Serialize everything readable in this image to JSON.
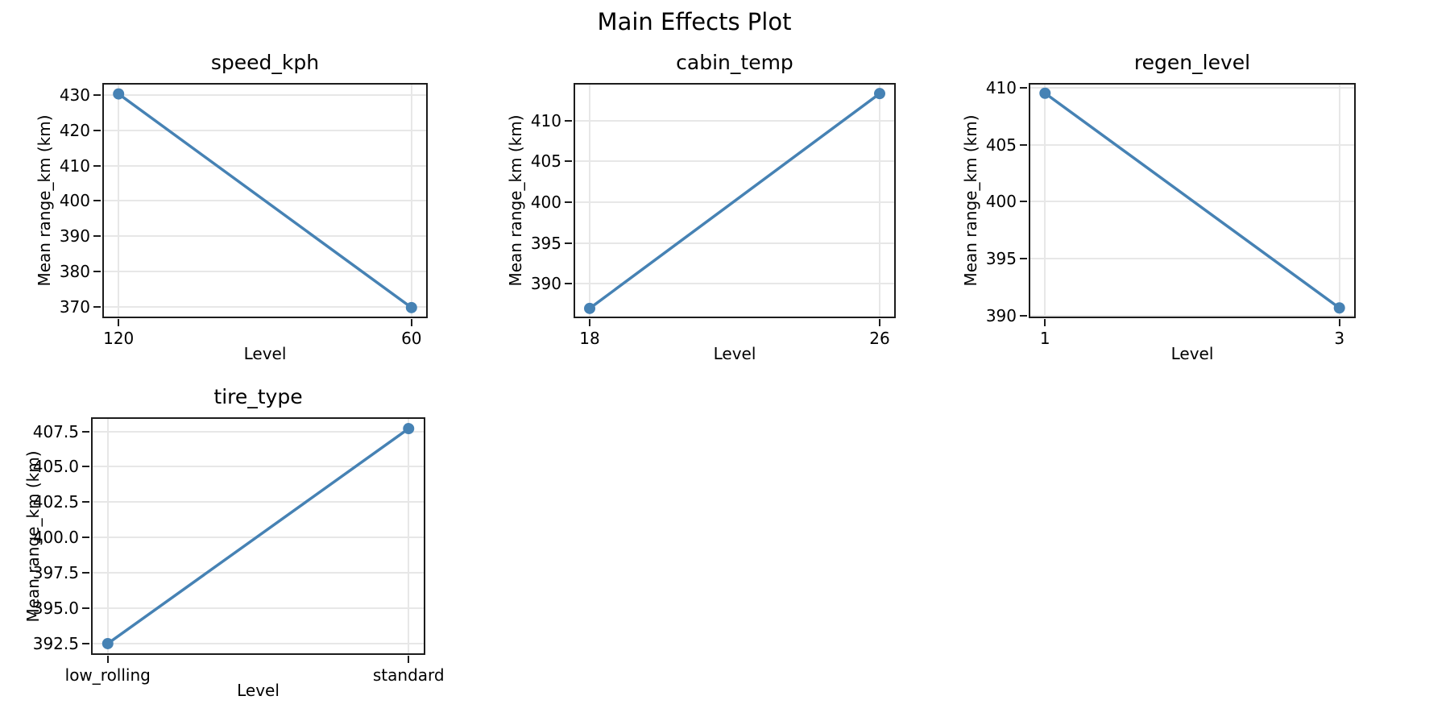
{
  "figure": {
    "title": "Main Effects Plot"
  },
  "chart_data": [
    {
      "type": "line",
      "title": "speed_kph",
      "xlabel": "Level",
      "ylabel": "Mean range_km (km)",
      "categories": [
        "120",
        "60"
      ],
      "values": [
        430.3,
        369.8
      ],
      "ytick_labels": [
        "370",
        "380",
        "390",
        "400",
        "410",
        "420",
        "430"
      ],
      "ylim": [
        366.8,
        433.4
      ],
      "grid": true,
      "legend": false,
      "marker": "circle",
      "line_color": "#4682B4"
    },
    {
      "type": "line",
      "title": "cabin_temp",
      "xlabel": "Level",
      "ylabel": "Mean range_km (km)",
      "categories": [
        "18",
        "26"
      ],
      "values": [
        387.0,
        413.3
      ],
      "ytick_labels": [
        "390",
        "395",
        "400",
        "405",
        "410"
      ],
      "ylim": [
        385.8,
        414.6
      ],
      "grid": true,
      "legend": false,
      "marker": "circle",
      "line_color": "#4682B4"
    },
    {
      "type": "line",
      "title": "regen_level",
      "xlabel": "Level",
      "ylabel": "Mean range_km (km)",
      "categories": [
        "1",
        "3"
      ],
      "values": [
        409.5,
        390.7
      ],
      "ytick_labels": [
        "390",
        "395",
        "400",
        "405",
        "410"
      ],
      "ylim": [
        389.8,
        410.4
      ],
      "grid": true,
      "legend": false,
      "marker": "circle",
      "line_color": "#4682B4"
    },
    {
      "type": "line",
      "title": "tire_type",
      "xlabel": "Level",
      "ylabel": "Mean range_km (km)",
      "categories": [
        "low_rolling",
        "standard"
      ],
      "values": [
        392.5,
        407.7
      ],
      "ytick_labels": [
        "392.5",
        "395.0",
        "397.5",
        "400.0",
        "402.5",
        "405.0",
        "407.5"
      ],
      "ylim": [
        391.7,
        408.5
      ],
      "grid": true,
      "legend": false,
      "marker": "circle",
      "line_color": "#4682B4"
    }
  ]
}
